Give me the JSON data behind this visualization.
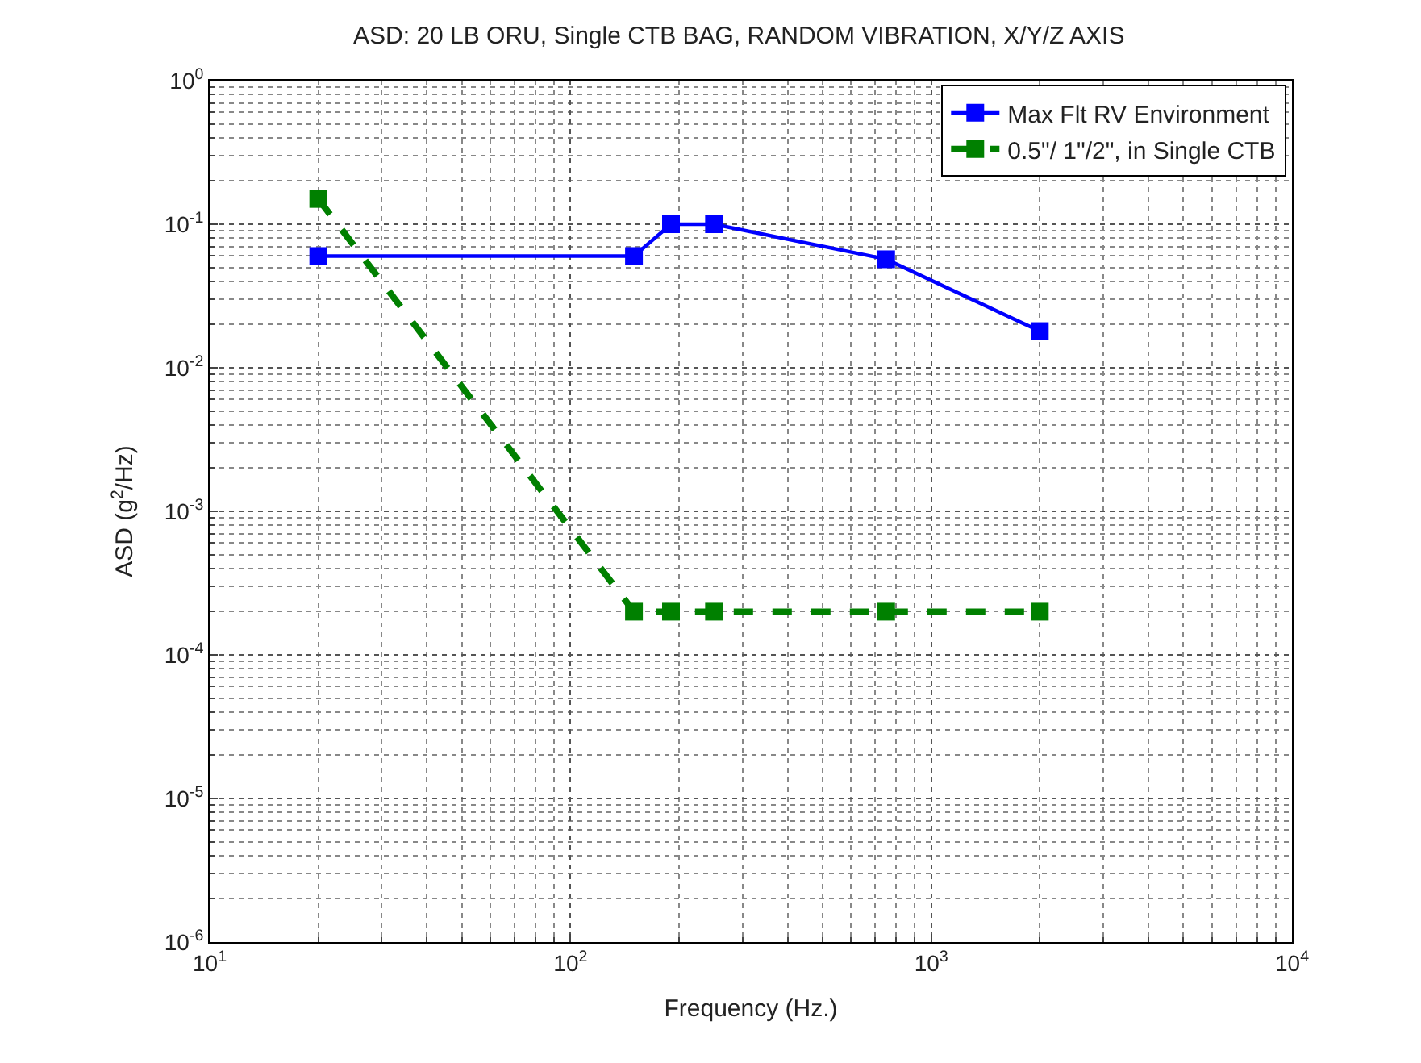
{
  "chart_data": {
    "type": "line",
    "title": "ASD: 20 LB ORU, Single CTB BAG, RANDOM VIBRATION, X/Y/Z AXIS",
    "xlabel": "Frequency (Hz.)",
    "ylabel": "ASD (g$^{2}$/Hz)",
    "x": [
      20,
      150,
      190,
      250,
      750,
      2000
    ],
    "series": [
      {
        "name": "Max Flt RV Environment",
        "color": "#0000ff",
        "values": [
          0.06,
          0.06,
          0.1,
          0.1,
          0.057,
          0.018
        ],
        "line_style": "solid"
      },
      {
        "name": "0.5\"/ 1\"/2\", in Single CTB",
        "color": "#008000",
        "values": [
          0.15,
          0.0002,
          0.0002,
          0.0002,
          0.0002,
          0.0002
        ],
        "line_style": "dashed"
      }
    ],
    "log": "xy",
    "xlim": [
      10,
      10000
    ],
    "ylim": [
      1e-06,
      1
    ],
    "xticks": [
      {
        "value": 10,
        "label": "10$^{1}$"
      },
      {
        "value": 100,
        "label": "10$^{2}$"
      },
      {
        "value": 1000,
        "label": "10$^{3}$"
      },
      {
        "value": 10000,
        "label": "10$^{4}$"
      }
    ],
    "yticks": [
      {
        "value": 1e-06,
        "label": "10$^{-6}$"
      },
      {
        "value": 1e-05,
        "label": "10$^{-5}$"
      },
      {
        "value": 0.0001,
        "label": "10$^{-4}$"
      },
      {
        "value": 0.001,
        "label": "10$^{-3}$"
      },
      {
        "value": 0.01,
        "label": "10$^{-2}$"
      },
      {
        "value": 0.1,
        "label": "10$^{-1}$"
      },
      {
        "value": 1,
        "label": "10$^{0}$"
      }
    ],
    "grid": true,
    "legend": "top right",
    "marker": "square"
  }
}
